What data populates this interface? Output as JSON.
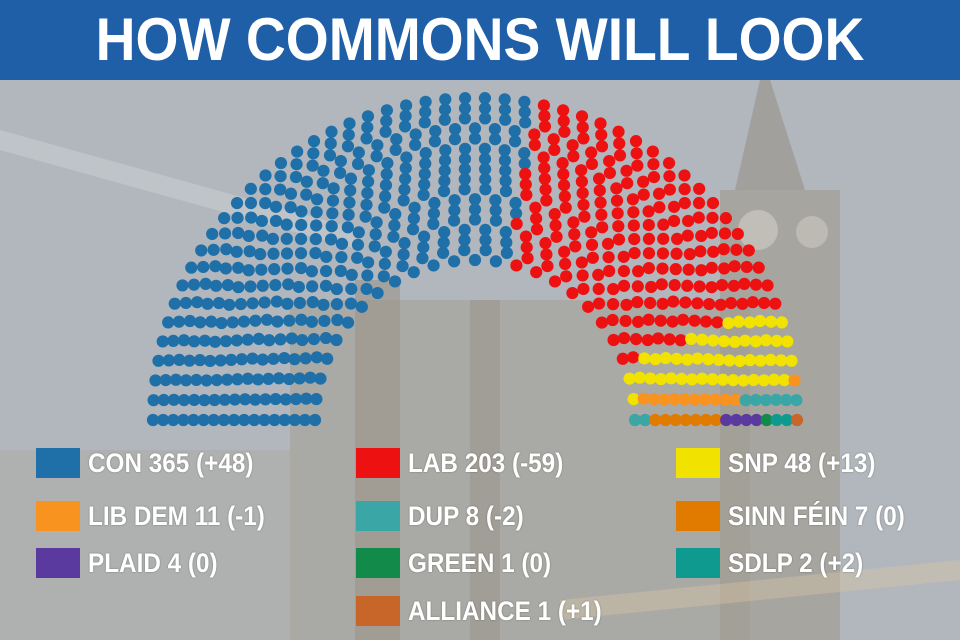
{
  "title": "HOW COMMONS WILL LOOK",
  "chart_data": {
    "type": "parliament",
    "total_seats": 650,
    "parties": [
      {
        "name": "CON",
        "seats": 365,
        "change": "+48",
        "label": "CON 365 (+48)",
        "color": "#1f6fa8"
      },
      {
        "name": "LAB",
        "seats": 203,
        "change": "-59",
        "label": "LAB 203 (-59)",
        "color": "#ee1111"
      },
      {
        "name": "SNP",
        "seats": 48,
        "change": "+13",
        "label": "SNP 48 (+13)",
        "color": "#f2e200"
      },
      {
        "name": "LIB DEM",
        "seats": 11,
        "change": "-1",
        "label": "LIB DEM 11 (-1)",
        "color": "#f7931e"
      },
      {
        "name": "DUP",
        "seats": 8,
        "change": "-2",
        "label": "DUP 8 (-2)",
        "color": "#3aa6a6"
      },
      {
        "name": "SINN FÉIN",
        "seats": 7,
        "change": "0",
        "label": "SINN FÉIN 7 (0)",
        "color": "#e07b00"
      },
      {
        "name": "PLAID",
        "seats": 4,
        "change": "0",
        "label": "PLAID 4 (0)",
        "color": "#5a3a9e"
      },
      {
        "name": "GREEN",
        "seats": 1,
        "change": "0",
        "label": "GREEN 1 (0)",
        "color": "#128a4a"
      },
      {
        "name": "SDLP",
        "seats": 2,
        "change": "+2",
        "label": "SDLP 2 (+2)",
        "color": "#0f9a8f"
      },
      {
        "name": "ALLIANCE",
        "seats": 1,
        "change": "+1",
        "label": "ALLIANCE 1 (+1)",
        "color": "#c8662a"
      },
      {
        "name": "",
        "seats": 0,
        "change": "",
        "label": "",
        "color": "#ffffff"
      }
    ],
    "unallocated_color": "#ffffff"
  }
}
